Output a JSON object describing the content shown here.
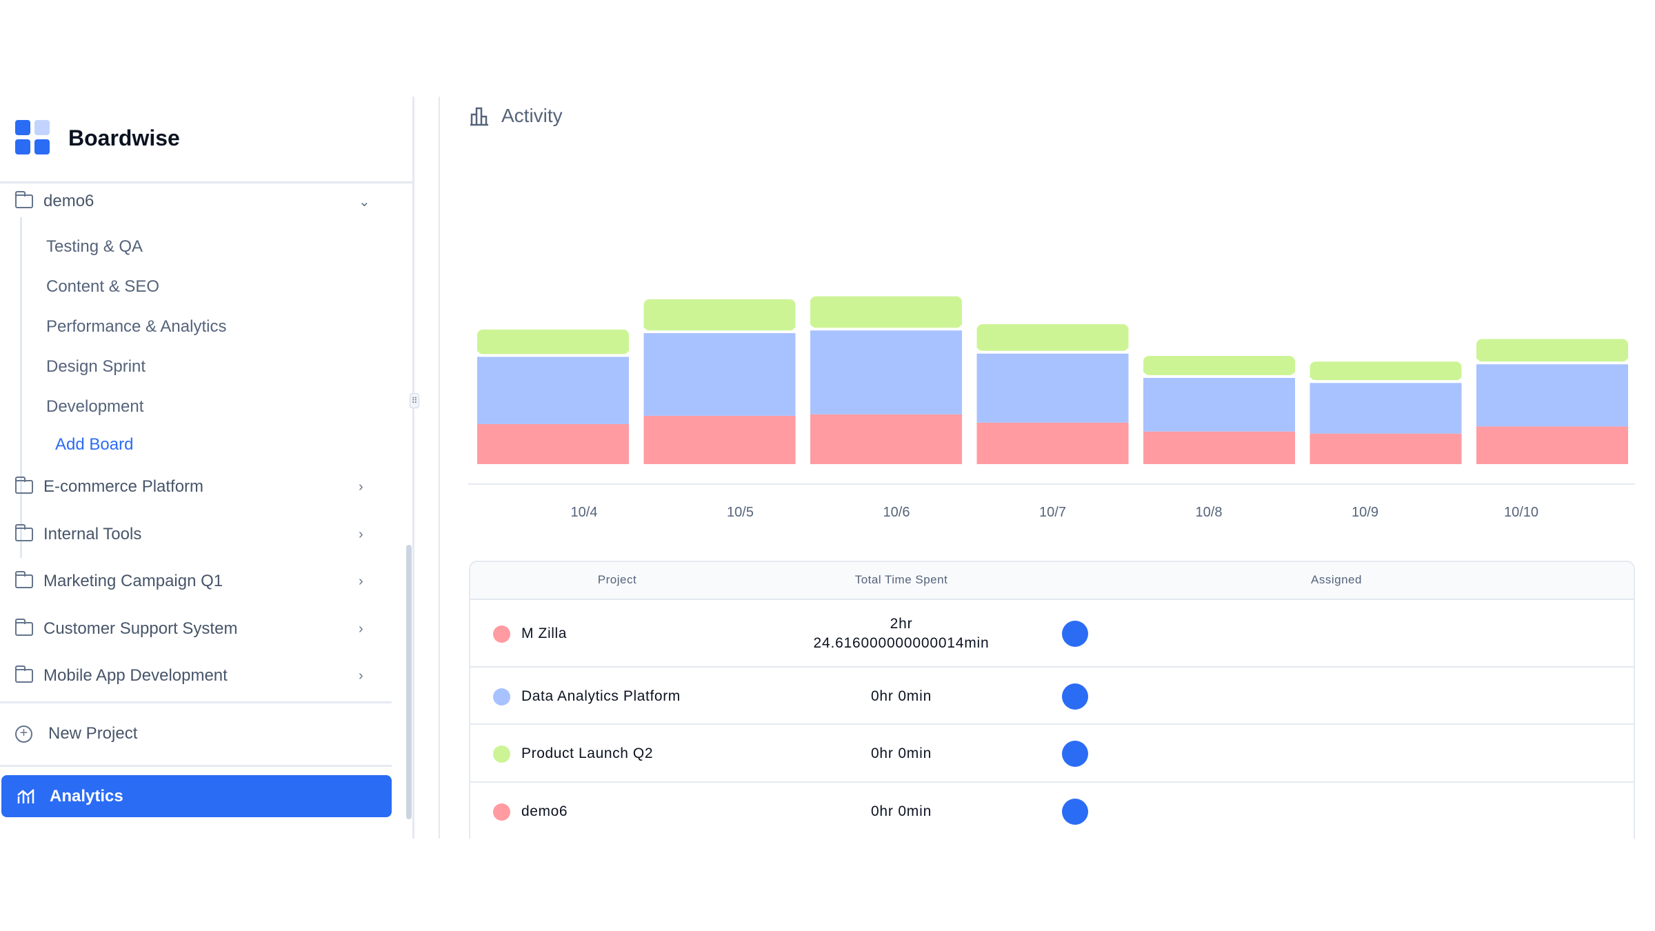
{
  "app": {
    "name": "Boardwise",
    "logo_color": "#2b6cf5"
  },
  "sidebar": {
    "expanded_project": "demo6",
    "boards": [
      "Testing & QA",
      "Content & SEO",
      "Performance & Analytics",
      "Design Sprint",
      "Development"
    ],
    "add_board": "Add Board",
    "projects": [
      "E-commerce Platform",
      "Internal Tools",
      "Marketing Campaign Q1",
      "Customer Support System",
      "Mobile App Development"
    ],
    "new_project": "New Project",
    "analytics": "Analytics"
  },
  "main": {
    "title": "Activity"
  },
  "chart_data": {
    "type": "bar",
    "stacked": true,
    "categories": [
      "10/4",
      "10/5",
      "10/6",
      "10/7",
      "10/8",
      "10/9",
      "10/10"
    ],
    "ylim": [
      0,
      100
    ],
    "grid": false,
    "legend": "none",
    "series": [
      {
        "color": "#ff9ba1",
        "values": [
          13.5,
          16.3,
          16.8,
          14.0,
          11.0,
          10.3,
          12.7
        ]
      },
      {
        "color": "#a8c2ff",
        "values": [
          23.6,
          28.8,
          29.2,
          24.2,
          19.0,
          18.0,
          21.9
        ]
      },
      {
        "color": "#ccf495",
        "values": [
          9.2,
          11.4,
          11.5,
          9.9,
          7.4,
          7.2,
          8.5
        ]
      }
    ]
  },
  "table": {
    "headers": [
      "Project",
      "Total Time Spent",
      "Assigned"
    ],
    "rows": [
      {
        "project": "M Zilla",
        "color": "#ff9ba1",
        "time_line1": "2hr",
        "time_line2": "24.616000000000014min"
      },
      {
        "project": "Data Analytics Platform",
        "color": "#a8c2ff",
        "time_line1": "0hr 0min",
        "time_line2": ""
      },
      {
        "project": "Product Launch Q2",
        "color": "#ccf495",
        "time_line1": "0hr 0min",
        "time_line2": ""
      },
      {
        "project": "demo6",
        "color": "#ff9ba1",
        "time_line1": "0hr 0min",
        "time_line2": ""
      }
    ]
  }
}
